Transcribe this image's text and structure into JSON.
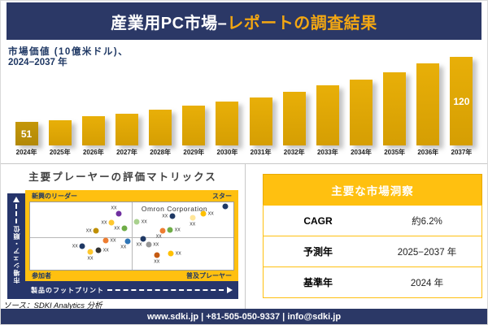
{
  "header": {
    "title_white": "産業用PC市場–",
    "title_accent": "レポートの調査結果"
  },
  "chart_data": [
    {
      "type": "bar",
      "title": "市場価値 (10億米ドル)、",
      "title_line2": "2024−2037 年",
      "categories": [
        "2024年",
        "2025年",
        "2026年",
        "2027年",
        "2028年",
        "2029年",
        "2030年",
        "2031年",
        "2032年",
        "2033年",
        "2034年",
        "2035年",
        "2036年",
        "2037年"
      ],
      "values": [
        51,
        53,
        57,
        60,
        64,
        68,
        73,
        77,
        83,
        90,
        96,
        104,
        113,
        120
      ],
      "visible_value_labels": [
        {
          "index": 0,
          "text": "51"
        },
        {
          "index": 13,
          "text": "120"
        }
      ],
      "ylim_visual": [
        26,
        120
      ],
      "grid": false,
      "legend": "none"
    },
    {
      "type": "scatter",
      "title": "主要プレーヤーの評価マトリックス",
      "xlabel": "製品のフットプリント",
      "ylabel": "市場シェア・順位",
      "quadrant_labels": {
        "top_left": "新興のリーダー",
        "top_right": "スター",
        "bottom_left": "参加者",
        "bottom_right": "普及プレーヤー"
      },
      "annotation": "Omron Corporation",
      "annotation_pos": {
        "x": 71,
        "y": 10
      },
      "point_label": "xx",
      "points": [
        {
          "x": 43.6,
          "y": 16.5,
          "color": "#7030A0",
          "label_pos": "above-left"
        },
        {
          "x": 40.0,
          "y": 30.0,
          "color": "#FFC82E",
          "label_pos": "left"
        },
        {
          "x": 32.5,
          "y": 42.5,
          "color": "#BF8F00",
          "label_pos": "left"
        },
        {
          "x": 46.3,
          "y": 38.6,
          "color": "#6FAD47",
          "label_pos": "left"
        },
        {
          "x": 37.2,
          "y": 57.0,
          "color": "#ED7D31",
          "label_pos": "right"
        },
        {
          "x": 47.9,
          "y": 57.8,
          "color": "#2E75B6",
          "label_pos": "below-left"
        },
        {
          "x": 25.7,
          "y": 65.4,
          "color": "#1F3864",
          "label_pos": "left"
        },
        {
          "x": 29.6,
          "y": 73.1,
          "color": "#FFC82E",
          "label_pos": "below"
        },
        {
          "x": 33.7,
          "y": 70.7,
          "color": "#333333",
          "label_pos": "right"
        },
        {
          "x": 95.9,
          "y": 6.4,
          "color": "#1F3864",
          "label_pos": "none"
        },
        {
          "x": 85.3,
          "y": 16.9,
          "color": "#FFC000",
          "label_pos": "right"
        },
        {
          "x": 79.9,
          "y": 22.9,
          "color": "#FFE699",
          "label_pos": "below"
        },
        {
          "x": 69.9,
          "y": 20.8,
          "color": "#1F3864",
          "label_pos": "left"
        },
        {
          "x": 52.5,
          "y": 28.9,
          "color": "#A9D18E",
          "label_pos": "right"
        },
        {
          "x": 65.3,
          "y": 42.5,
          "color": "#ED7D31",
          "label_pos": "below-left"
        },
        {
          "x": 68.9,
          "y": 40.6,
          "color": "#6FAD47",
          "label_pos": "right"
        },
        {
          "x": 55.6,
          "y": 54.6,
          "color": "#1F3864",
          "label_pos": "below-left"
        },
        {
          "x": 58.3,
          "y": 62.7,
          "color": "#979797",
          "label_pos": "right"
        },
        {
          "x": 62.3,
          "y": 77.9,
          "color": "#C55A11",
          "label_pos": "below"
        },
        {
          "x": 69.3,
          "y": 75.9,
          "color": "#FFC000",
          "label_pos": "right"
        }
      ]
    }
  ],
  "insights": {
    "title": "主要な市場洞察",
    "rows": [
      {
        "label": "CAGR",
        "value": "約6.2%"
      },
      {
        "label": "予測年",
        "value": "2025−2037 年"
      },
      {
        "label": "基準年",
        "value": "2024 年"
      }
    ]
  },
  "source_note": "ソース：SDKI Analytics 分析",
  "footer": {
    "text": "www.sdki.jp | +81-505-050-9337 | info@sdki.jp"
  },
  "colors": {
    "navy": "#2B3866",
    "gold_panel": "#FFC010",
    "accent_title": "#F3A712",
    "bar_gold": "#DCA406",
    "bar_first": "#BD9109"
  }
}
